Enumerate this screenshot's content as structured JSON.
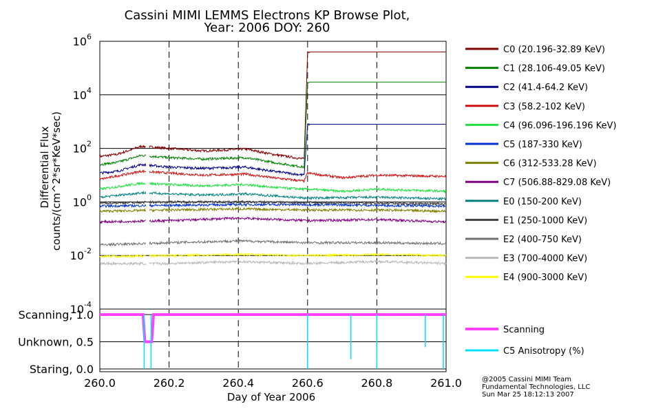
{
  "chart_data": [
    {
      "type": "line",
      "title_line1": "Cassini MIMI LEMMS Electrons KP Browse Plot,",
      "title_line2": "Year: 2006 DOY: 260",
      "ylabel_line1": "Differential Flux",
      "ylabel_line2": "counts/(cm^2*sr*KeV*sec)",
      "y_scale": "log",
      "ylim": [
        0.0001,
        1000000
      ],
      "y_ticks": [
        {
          "base": "10",
          "exp": "6"
        },
        {
          "base": "10",
          "exp": "4"
        },
        {
          "base": "10",
          "exp": "2"
        },
        {
          "base": "10",
          "exp": "0"
        },
        {
          "base": "10",
          "exp": "-2"
        },
        {
          "base": "10",
          "exp": "-4"
        }
      ],
      "xlim": [
        260.0,
        261.0
      ],
      "grid": true,
      "legend_position": "right",
      "series": [
        {
          "name": "C0 (20.196-32.89 KeV)",
          "color": "#800000",
          "x": [
            260.0,
            260.05,
            260.12,
            260.2,
            260.3,
            260.42,
            260.5,
            260.59,
            260.6,
            261.0
          ],
          "y": [
            50,
            60,
            120,
            100,
            80,
            95,
            60,
            40,
            400000,
            400000
          ]
        },
        {
          "name": "C1 (28.106-49.05 KeV)",
          "color": "#008000",
          "x": [
            260.0,
            260.05,
            260.12,
            260.2,
            260.3,
            260.42,
            260.5,
            260.59,
            260.6,
            261.0
          ],
          "y": [
            25,
            30,
            55,
            45,
            40,
            45,
            30,
            20,
            30000,
            30000
          ]
        },
        {
          "name": "C2 (41.4-64.2 KeV)",
          "color": "#000080",
          "x": [
            260.0,
            260.05,
            260.12,
            260.2,
            260.3,
            260.42,
            260.5,
            260.59,
            260.6,
            261.0
          ],
          "y": [
            12,
            14,
            25,
            20,
            18,
            20,
            14,
            10,
            800,
            800
          ]
        },
        {
          "name": "C3 (58.2-102 KeV)",
          "color": "#d01010",
          "x": [
            260.0,
            260.12,
            260.2,
            260.3,
            260.42,
            260.5,
            260.59,
            260.6,
            260.7,
            260.8,
            261.0
          ],
          "y": [
            7,
            14,
            12,
            10,
            11,
            8,
            6,
            12,
            8,
            10,
            9
          ]
        },
        {
          "name": "C4 (96.096-196.196 KeV)",
          "color": "#20e040",
          "x": [
            260.0,
            260.12,
            260.2,
            260.3,
            260.42,
            260.5,
            260.59,
            260.6,
            260.7,
            260.8,
            261.0
          ],
          "y": [
            3,
            5,
            4.5,
            4,
            4.5,
            3.5,
            3,
            3,
            2.5,
            3,
            2.5
          ]
        },
        {
          "name": "C5 (187-330 KeV)",
          "color": "#0030d0",
          "x": [
            260.0,
            260.2,
            260.4,
            260.6,
            260.8,
            261.0
          ],
          "y": [
            0.7,
            0.75,
            0.8,
            0.8,
            0.75,
            0.7
          ]
        },
        {
          "name": "C6 (312-533.28 KeV)",
          "color": "#808000",
          "x": [
            260.0,
            260.2,
            260.4,
            260.6,
            260.8,
            261.0
          ],
          "y": [
            0.45,
            0.5,
            0.55,
            0.5,
            0.5,
            0.45
          ]
        },
        {
          "name": "C7 (506.88-829.08 KeV)",
          "color": "#800080",
          "x": [
            260.0,
            260.2,
            260.4,
            260.6,
            260.8,
            261.0
          ],
          "y": [
            0.18,
            0.2,
            0.25,
            0.2,
            0.22,
            0.18
          ]
        },
        {
          "name": "E0 (150-200 KeV)",
          "color": "#008080",
          "x": [
            260.0,
            260.12,
            260.3,
            260.42,
            260.59,
            260.6,
            260.8,
            261.0
          ],
          "y": [
            1.5,
            2.2,
            1.8,
            2,
            1.4,
            1.4,
            1.5,
            1.3
          ]
        },
        {
          "name": "E1 (250-1000 KeV)",
          "color": "#404040",
          "x": [
            260.0,
            260.2,
            260.4,
            260.6,
            260.8,
            261.0
          ],
          "y": [
            0.9,
            1.0,
            1.0,
            0.95,
            0.9,
            0.85
          ]
        },
        {
          "name": "E2 (400-750 KeV)",
          "color": "#707070",
          "x": [
            260.0,
            260.2,
            260.4,
            260.6,
            260.8,
            261.0
          ],
          "y": [
            0.025,
            0.03,
            0.035,
            0.03,
            0.03,
            0.028
          ]
        },
        {
          "name": "E3 (700-4000 KeV)",
          "color": "#b8b8b8",
          "x": [
            260.0,
            260.2,
            260.4,
            260.6,
            260.8,
            261.0
          ],
          "y": [
            0.005,
            0.005,
            0.006,
            0.005,
            0.006,
            0.005
          ]
        },
        {
          "name": "E4 (900-3000 KeV)",
          "color": "#ffff00",
          "x": [
            260.0,
            260.2,
            260.4,
            260.6,
            260.8,
            261.0
          ],
          "y": [
            0.009,
            0.01,
            0.011,
            0.01,
            0.011,
            0.01
          ]
        }
      ]
    },
    {
      "type": "line",
      "xlabel": "Day of Year 2006",
      "xlim": [
        260.0,
        261.0
      ],
      "x_ticks": [
        "260.0",
        "260.2",
        "260.4",
        "260.6",
        "260.8",
        "261.0"
      ],
      "ylim": [
        0,
        1.05
      ],
      "y_ticks": [
        {
          "label": "Scanning, 1.0",
          "value": 1.0
        },
        {
          "label": "Unknown, 0.5",
          "value": 0.5
        },
        {
          "label": "Staring, 0.0",
          "value": 0.0
        }
      ],
      "grid": true,
      "legend_position": "right",
      "series": [
        {
          "name": "Scanning",
          "color": "#ff40ff",
          "x": [
            260.0,
            260.125,
            260.13,
            260.15,
            260.155,
            261.0
          ],
          "y": [
            1.0,
            1.0,
            0.5,
            0.5,
            1.0,
            1.0
          ]
        },
        {
          "name": "C5 Anisotropy (%)",
          "color": "#00e0ff",
          "spikes": [
            {
              "x": 260.128,
              "low": 0.0
            },
            {
              "x": 260.148,
              "low": 0.0
            },
            {
              "x": 260.6,
              "low": 0.0
            },
            {
              "x": 260.725,
              "low": 0.18
            },
            {
              "x": 260.8,
              "low": 0.0
            },
            {
              "x": 260.94,
              "low": 0.4
            },
            {
              "x": 260.992,
              "low": 0.0
            }
          ]
        }
      ]
    }
  ],
  "footer": {
    "line1": "@2005 Cassini MIMI Team",
    "line2": "Fundamental Technologies, LLC",
    "line3": "Sun Mar 25 18:12:13 2007"
  }
}
